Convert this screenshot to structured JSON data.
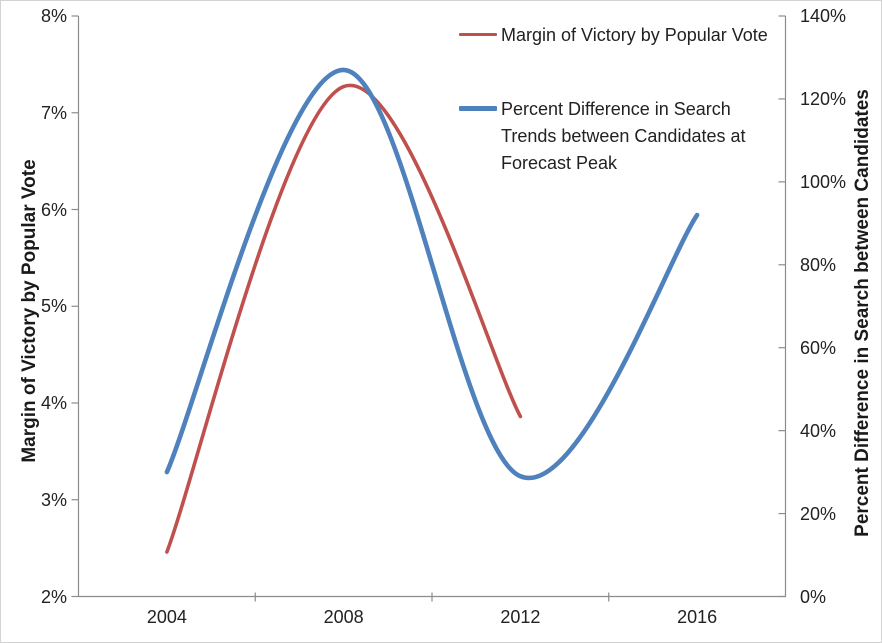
{
  "chart_data": {
    "type": "line",
    "title": "",
    "x_categories": [
      "2004",
      "2008",
      "2012",
      "2016"
    ],
    "left_axis": {
      "title": "Margin of Victory by Popular Vote",
      "tick_labels_bottom_to_top": [
        "2%",
        "3%",
        "4%",
        "5%",
        "6%",
        "7%",
        "8%"
      ],
      "min": 2,
      "max": 8
    },
    "right_axis": {
      "title": "Percent Difference in Search between Candidates",
      "tick_labels_bottom_to_top": [
        "0%",
        "20%",
        "40%",
        "60%",
        "80%",
        "100%",
        "120%",
        "140%"
      ],
      "min": 0,
      "max": 140
    },
    "series": [
      {
        "name": "Margin of Victory by Popular Vote",
        "axis": "left",
        "color": "#C0504D",
        "line_width": 3.6,
        "smooth": true,
        "categories": [
          "2004",
          "2008",
          "2012"
        ],
        "values_percent": [
          2.46,
          7.27,
          3.86
        ]
      },
      {
        "name": "Percent Difference in Search Trends between Candidates at Forecast Peak",
        "axis": "right",
        "color": "#4F81BD",
        "line_width": 4.6,
        "smooth": true,
        "categories": [
          "2004",
          "2008",
          "2012",
          "2016"
        ],
        "values_percent": [
          30,
          127,
          29,
          92
        ]
      }
    ],
    "legend": {
      "position": "top-right-inside",
      "items": [
        {
          "label": "Margin of Victory by Popular Vote",
          "color": "#C0504D"
        },
        {
          "label": "Percent Difference in Search Trends between Candidates at Forecast Peak",
          "color": "#4F81BD"
        }
      ]
    },
    "grid": "off"
  },
  "colors": {
    "background": "#FFFFFF",
    "chart_border": "#D3D3D3",
    "axis_line": "#8C8C8C",
    "text": "#222222",
    "series_red": "#C0504D",
    "series_blue": "#4F81BD"
  }
}
